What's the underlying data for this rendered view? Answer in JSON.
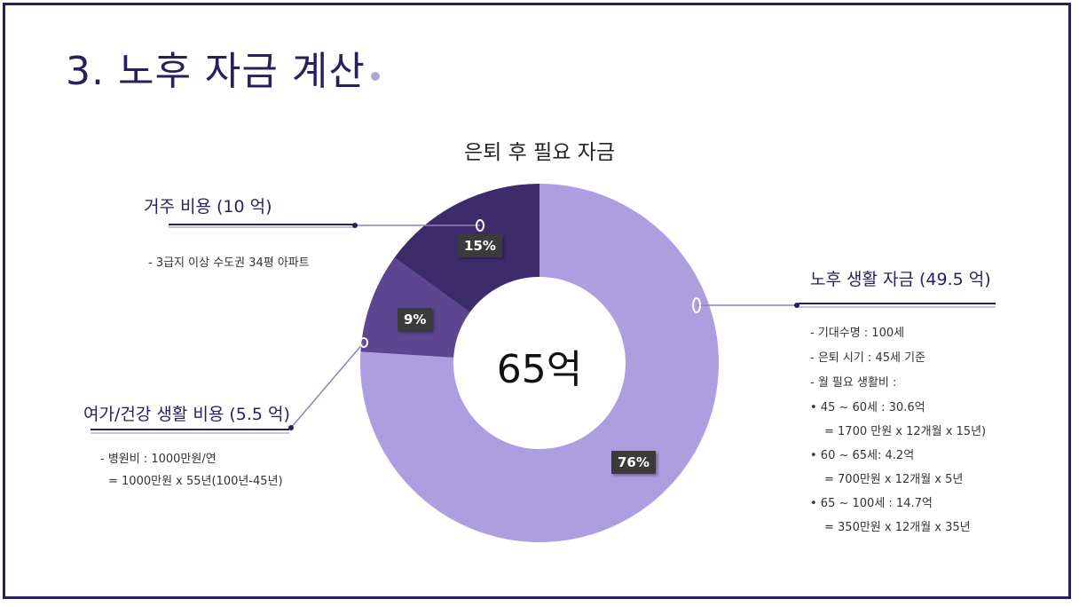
{
  "title": "3. 노후 자금 계산",
  "chart_data": {
    "type": "pie",
    "title": "은퇴 후 필요 자금",
    "center_label": "65억",
    "categories": [
      "노후 생활 자금",
      "여가/건강 생활 비용",
      "거주 비용"
    ],
    "values": [
      76,
      9,
      15
    ],
    "labels": [
      "76%",
      "9%",
      "15%"
    ],
    "colors": [
      "#ad9ee0",
      "#5d4590",
      "#3d2c6b"
    ]
  },
  "callouts": {
    "housing": {
      "title": "거주 비용 (10 억)",
      "lines": [
        "- 3급지 이상 수도권 34평 아파트"
      ]
    },
    "living": {
      "title": "노후 생활 자금 (49.5 억)",
      "lines": [
        "- 기대수명 : 100세",
        "- 은퇴 시기 : 45세 기준",
        "- 월 필요 생활비 :",
        "•    45 ~ 60세 : 30.6억",
        "= 1700 만원 x 12개월 x 15년)",
        "•    60 ~ 65세: 4.2억",
        "= 700만원 x 12개월 x 5년",
        "•     65 ~ 100세 : 14.7억",
        "= 350만원 x 12개월 x 35년"
      ]
    },
    "leisure": {
      "title": "여가/건강 생활 비용 (5.5 억)",
      "lines": [
        "- 병원비 : 1000만원/연",
        "= 1000만원 x 55년(100년-45년)"
      ]
    }
  }
}
